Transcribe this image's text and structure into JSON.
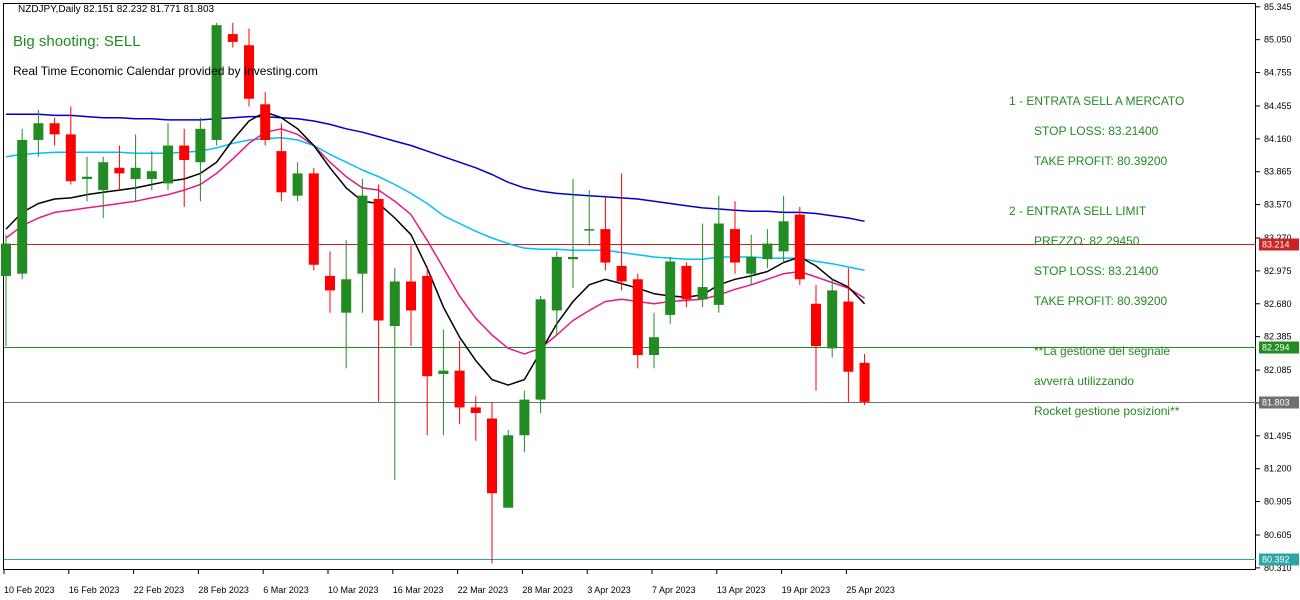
{
  "header": {
    "symbol_info": "NZDJPY,Daily  82.151 82.232 81.771 81.803"
  },
  "signal_text": "Big shooting: SELL",
  "calendar_text": "Real Time Economic Calendar provided by Investing.com",
  "plan": {
    "lines": [
      "1 - ENTRATA SELL A MERCATO",
      "STOP LOSS: 83.21400",
      "TAKE PROFIT: 80.39200",
      "2 - ENTRATA SELL LIMIT",
      "PREZZO: 82.29450",
      "STOP LOSS: 83.21400",
      "TAKE PROFIT: 80.39200",
      "**La gestione del segnale",
      "avverrà utilizzando",
      "Rocket gestione posizioni**"
    ]
  },
  "colors": {
    "bull": "#228b22",
    "bear": "#ff0000",
    "ma_slow": "#0000cd",
    "ma_mid": "#00bfff",
    "ma_fast_pink": "#e6198a",
    "ma_fastest": "#000000",
    "line_stop": "#cc2222",
    "line_entry": "#228b22",
    "line_price": "#707070",
    "line_tp": "#2aa6a6"
  },
  "chart_data": {
    "type": "candlestick",
    "symbol": "NZDJPY",
    "timeframe": "Daily",
    "ylim": [
      80.3,
      85.37
    ],
    "y_ticks": [
      "85.345",
      "85.050",
      "84.755",
      "84.455",
      "84.160",
      "83.865",
      "83.570",
      "83.270",
      "82.975",
      "82.680",
      "82.385",
      "82.085",
      "81.790",
      "81.495",
      "81.200",
      "80.905",
      "80.605",
      "80.310"
    ],
    "x_ticks": [
      {
        "index": 0,
        "label": "10 Feb 2023"
      },
      {
        "index": 4,
        "label": "16 Feb 2023"
      },
      {
        "index": 8,
        "label": "22 Feb 2023"
      },
      {
        "index": 12,
        "label": "28 Feb 2023"
      },
      {
        "index": 16,
        "label": "6 Mar 2023"
      },
      {
        "index": 20,
        "label": "10 Mar 2023"
      },
      {
        "index": 24,
        "label": "16 Mar 2023"
      },
      {
        "index": 28,
        "label": "22 Mar 2023"
      },
      {
        "index": 32,
        "label": "28 Mar 2023"
      },
      {
        "index": 36,
        "label": "3 Apr 2023"
      },
      {
        "index": 40,
        "label": "7 Apr 2023"
      },
      {
        "index": 44,
        "label": "13 Apr 2023"
      },
      {
        "index": 48,
        "label": "19 Apr 2023"
      },
      {
        "index": 52,
        "label": "25 Apr 2023"
      }
    ],
    "price_lines": [
      {
        "name": "stop-loss-line",
        "value": 83.214,
        "label": "83.214",
        "color": "#cc2222"
      },
      {
        "name": "entry-line",
        "value": 82.294,
        "label": "82.294",
        "color": "#228b22"
      },
      {
        "name": "current-price-line",
        "value": 81.803,
        "label": "81.803",
        "color": "#707070"
      },
      {
        "name": "take-profit-line",
        "value": 80.392,
        "label": "80.392",
        "color": "#2aa6a6"
      }
    ],
    "candles": [
      {
        "o": 82.93,
        "h": 83.3,
        "l": 82.3,
        "c": 83.22
      },
      {
        "o": 82.95,
        "h": 84.25,
        "l": 82.9,
        "c": 84.15
      },
      {
        "o": 84.15,
        "h": 84.42,
        "l": 84.0,
        "c": 84.3
      },
      {
        "o": 84.3,
        "h": 84.35,
        "l": 84.1,
        "c": 84.2
      },
      {
        "o": 84.2,
        "h": 84.45,
        "l": 83.75,
        "c": 83.78
      },
      {
        "o": 83.8,
        "h": 84.0,
        "l": 83.6,
        "c": 83.82
      },
      {
        "o": 83.7,
        "h": 84.0,
        "l": 83.45,
        "c": 83.95
      },
      {
        "o": 83.9,
        "h": 84.1,
        "l": 83.7,
        "c": 83.85
      },
      {
        "o": 83.8,
        "h": 84.2,
        "l": 83.6,
        "c": 83.9
      },
      {
        "o": 83.8,
        "h": 84.05,
        "l": 83.7,
        "c": 83.87
      },
      {
        "o": 83.76,
        "h": 84.3,
        "l": 83.7,
        "c": 84.1
      },
      {
        "o": 84.1,
        "h": 84.25,
        "l": 83.55,
        "c": 83.97
      },
      {
        "o": 83.95,
        "h": 84.35,
        "l": 83.6,
        "c": 84.25
      },
      {
        "o": 84.15,
        "h": 85.2,
        "l": 84.1,
        "c": 85.18
      },
      {
        "o": 85.1,
        "h": 85.2,
        "l": 84.98,
        "c": 85.03
      },
      {
        "o": 85.0,
        "h": 85.15,
        "l": 84.45,
        "c": 84.52
      },
      {
        "o": 84.47,
        "h": 84.58,
        "l": 84.1,
        "c": 84.15
      },
      {
        "o": 84.05,
        "h": 84.3,
        "l": 83.6,
        "c": 83.68
      },
      {
        "o": 83.65,
        "h": 83.95,
        "l": 83.6,
        "c": 83.85
      },
      {
        "o": 83.85,
        "h": 83.9,
        "l": 82.98,
        "c": 83.03
      },
      {
        "o": 82.93,
        "h": 83.15,
        "l": 82.6,
        "c": 82.8
      },
      {
        "o": 82.6,
        "h": 83.25,
        "l": 82.1,
        "c": 82.9
      },
      {
        "o": 82.95,
        "h": 83.8,
        "l": 82.6,
        "c": 83.65
      },
      {
        "o": 83.62,
        "h": 83.75,
        "l": 81.8,
        "c": 82.53
      },
      {
        "o": 82.48,
        "h": 83.0,
        "l": 81.1,
        "c": 82.88
      },
      {
        "o": 82.88,
        "h": 83.2,
        "l": 82.3,
        "c": 82.62
      },
      {
        "o": 82.93,
        "h": 83.0,
        "l": 81.5,
        "c": 82.03
      },
      {
        "o": 82.05,
        "h": 82.45,
        "l": 81.5,
        "c": 82.08
      },
      {
        "o": 82.08,
        "h": 82.35,
        "l": 81.6,
        "c": 81.75
      },
      {
        "o": 81.75,
        "h": 81.85,
        "l": 81.45,
        "c": 81.7
      },
      {
        "o": 81.65,
        "h": 81.8,
        "l": 80.35,
        "c": 80.98
      },
      {
        "o": 80.85,
        "h": 81.55,
        "l": 80.85,
        "c": 81.5
      },
      {
        "o": 81.5,
        "h": 81.9,
        "l": 81.35,
        "c": 81.82
      },
      {
        "o": 81.82,
        "h": 82.75,
        "l": 81.7,
        "c": 82.72
      },
      {
        "o": 82.62,
        "h": 83.15,
        "l": 82.4,
        "c": 83.1
      },
      {
        "o": 83.08,
        "h": 83.8,
        "l": 82.82,
        "c": 83.1
      },
      {
        "o": 83.35,
        "h": 83.7,
        "l": 83.2,
        "c": 83.35
      },
      {
        "o": 83.35,
        "h": 83.65,
        "l": 82.98,
        "c": 83.05
      },
      {
        "o": 83.02,
        "h": 83.85,
        "l": 82.8,
        "c": 82.88
      },
      {
        "o": 82.9,
        "h": 82.95,
        "l": 82.1,
        "c": 82.22
      },
      {
        "o": 82.22,
        "h": 82.6,
        "l": 82.1,
        "c": 82.38
      },
      {
        "o": 82.58,
        "h": 83.1,
        "l": 82.5,
        "c": 83.06
      },
      {
        "o": 83.02,
        "h": 83.05,
        "l": 82.65,
        "c": 82.72
      },
      {
        "o": 82.72,
        "h": 83.4,
        "l": 82.65,
        "c": 82.83
      },
      {
        "o": 82.67,
        "h": 83.65,
        "l": 82.6,
        "c": 83.4
      },
      {
        "o": 83.35,
        "h": 83.6,
        "l": 82.95,
        "c": 83.05
      },
      {
        "o": 82.95,
        "h": 83.3,
        "l": 82.85,
        "c": 83.1
      },
      {
        "o": 83.08,
        "h": 83.35,
        "l": 83.0,
        "c": 83.22
      },
      {
        "o": 83.15,
        "h": 83.65,
        "l": 83.05,
        "c": 83.42
      },
      {
        "o": 83.48,
        "h": 83.55,
        "l": 82.85,
        "c": 82.9
      },
      {
        "o": 82.68,
        "h": 82.85,
        "l": 81.9,
        "c": 82.3
      },
      {
        "o": 82.28,
        "h": 82.9,
        "l": 82.2,
        "c": 82.8
      },
      {
        "o": 82.7,
        "h": 83.0,
        "l": 81.8,
        "c": 82.07
      },
      {
        "o": 82.15,
        "h": 82.23,
        "l": 81.77,
        "c": 81.8
      }
    ],
    "ma_fastest": [
      83.35,
      83.5,
      83.58,
      83.62,
      83.63,
      83.66,
      83.68,
      83.7,
      83.72,
      83.75,
      83.78,
      83.8,
      83.85,
      83.95,
      84.15,
      84.32,
      84.4,
      84.35,
      84.25,
      84.1,
      83.9,
      83.72,
      83.6,
      83.58,
      83.45,
      83.3,
      83.0,
      82.65,
      82.38,
      82.17,
      82.0,
      81.95,
      82.0,
      82.25,
      82.5,
      82.7,
      82.85,
      82.9,
      82.86,
      82.82,
      82.77,
      82.75,
      82.74,
      82.76,
      82.85,
      82.9,
      82.93,
      82.97,
      83.05,
      83.1,
      83.02,
      82.9,
      82.83,
      82.68
    ],
    "ma_fast_pink": [
      83.27,
      83.38,
      83.45,
      83.5,
      83.52,
      83.54,
      83.56,
      83.58,
      83.6,
      83.63,
      83.66,
      83.7,
      83.75,
      83.85,
      83.98,
      84.12,
      84.22,
      84.25,
      84.2,
      84.1,
      83.95,
      83.82,
      83.72,
      83.7,
      83.6,
      83.48,
      83.25,
      83.0,
      82.75,
      82.55,
      82.4,
      82.28,
      82.23,
      82.28,
      82.4,
      82.53,
      82.62,
      82.7,
      82.72,
      82.7,
      82.68,
      82.7,
      82.71,
      82.72,
      82.76,
      82.81,
      82.85,
      82.9,
      82.95,
      82.97,
      82.92,
      82.87,
      82.82,
      82.73
    ],
    "ma_mid": [
      84.0,
      84.02,
      84.03,
      84.04,
      84.04,
      84.04,
      84.04,
      84.04,
      84.03,
      84.03,
      84.03,
      84.04,
      84.05,
      84.08,
      84.12,
      84.15,
      84.16,
      84.17,
      84.15,
      84.1,
      84.02,
      83.95,
      83.88,
      83.82,
      83.75,
      83.67,
      83.58,
      83.47,
      83.4,
      83.33,
      83.27,
      83.22,
      83.18,
      83.17,
      83.17,
      83.16,
      83.16,
      83.16,
      83.14,
      83.12,
      83.1,
      83.09,
      83.08,
      83.08,
      83.1,
      83.1,
      83.1,
      83.09,
      83.09,
      83.09,
      83.06,
      83.04,
      83.01,
      82.98
    ],
    "ma_slow": [
      84.38,
      84.38,
      84.38,
      84.37,
      84.37,
      84.36,
      84.35,
      84.35,
      84.34,
      84.34,
      84.33,
      84.33,
      84.33,
      84.34,
      84.35,
      84.36,
      84.36,
      84.35,
      84.34,
      84.32,
      84.29,
      84.25,
      84.22,
      84.18,
      84.14,
      84.1,
      84.05,
      84.0,
      83.95,
      83.9,
      83.84,
      83.77,
      83.72,
      83.69,
      83.67,
      83.66,
      83.65,
      83.64,
      83.63,
      83.62,
      83.6,
      83.58,
      83.56,
      83.54,
      83.53,
      83.52,
      83.51,
      83.51,
      83.5,
      83.5,
      83.49,
      83.47,
      83.45,
      83.42
    ]
  }
}
